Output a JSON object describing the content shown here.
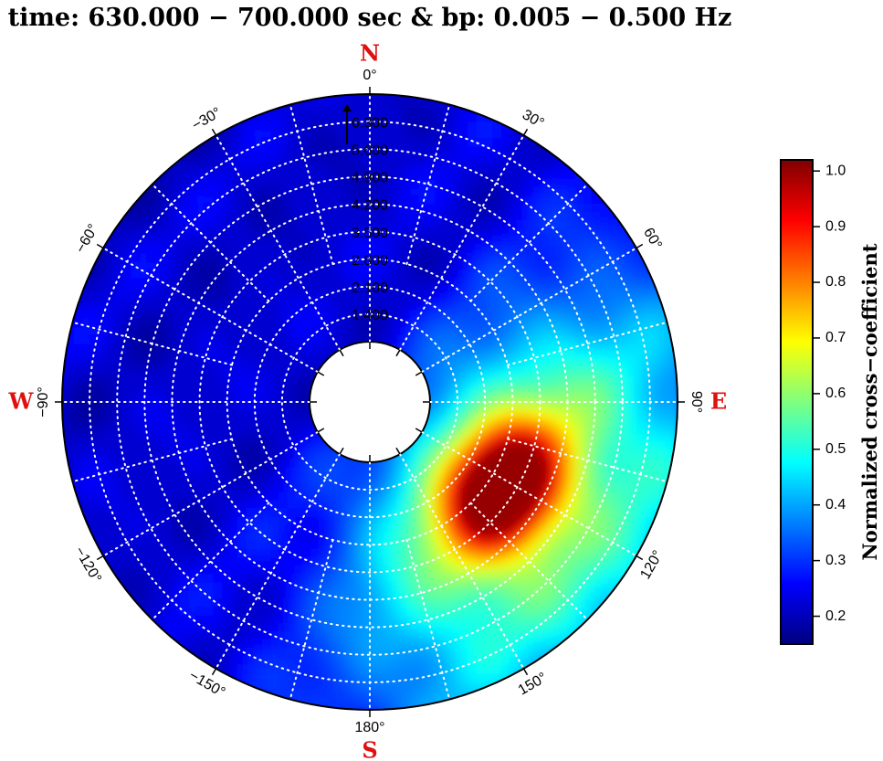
{
  "title": "time: 630.000 − 700.000 sec & bp: 0.005 − 0.500 Hz",
  "chart_data": {
    "type": "heatmap",
    "subtype": "polar-beam-power",
    "title": "time: 630.000 − 700.000 sec & bp: 0.005 − 0.500 Hz",
    "cardinal_labels": {
      "north": "N",
      "east": "E",
      "south": "S",
      "west": "W"
    },
    "cardinal_color": "#e01010",
    "azimuth_ticks": [
      "0°",
      "30°",
      "60°",
      "90°",
      "120°",
      "150°",
      "180°",
      "−150°",
      "−120°",
      "−90°",
      "−60°",
      "−30°"
    ],
    "azimuth_tick_values": [
      0,
      30,
      60,
      90,
      120,
      150,
      180,
      -150,
      -120,
      -90,
      -60,
      -30
    ],
    "radial_tick_labels": [
      "1.400",
      "2.100",
      "2.800",
      "3.500",
      "4.200",
      "4.900",
      "5.600",
      "6.300"
    ],
    "radial_tick_values": [
      1.4,
      2.1,
      2.8,
      3.5,
      4.2,
      4.9,
      5.6,
      6.3
    ],
    "radial_range": [
      0.7,
      7.0
    ],
    "grid": true,
    "peak": {
      "azimuth": 123,
      "radius": 3.2,
      "value": 1.0
    },
    "background_value": 0.22,
    "colorbar": {
      "label": "Normalized cross−coefficient",
      "ticks": [
        "0.2",
        "0.3",
        "0.4",
        "0.5",
        "0.6",
        "0.7",
        "0.8",
        "0.9",
        "1.0"
      ],
      "tick_values": [
        0.2,
        0.3,
        0.4,
        0.5,
        0.6,
        0.7,
        0.8,
        0.9,
        1.0
      ],
      "range": [
        0.15,
        1.02
      ],
      "colormap": [
        "#00007f",
        "#0000ff",
        "#007fff",
        "#00ffff",
        "#7fff7f",
        "#ffff00",
        "#ff7f00",
        "#ff0000",
        "#7f0000"
      ]
    }
  }
}
